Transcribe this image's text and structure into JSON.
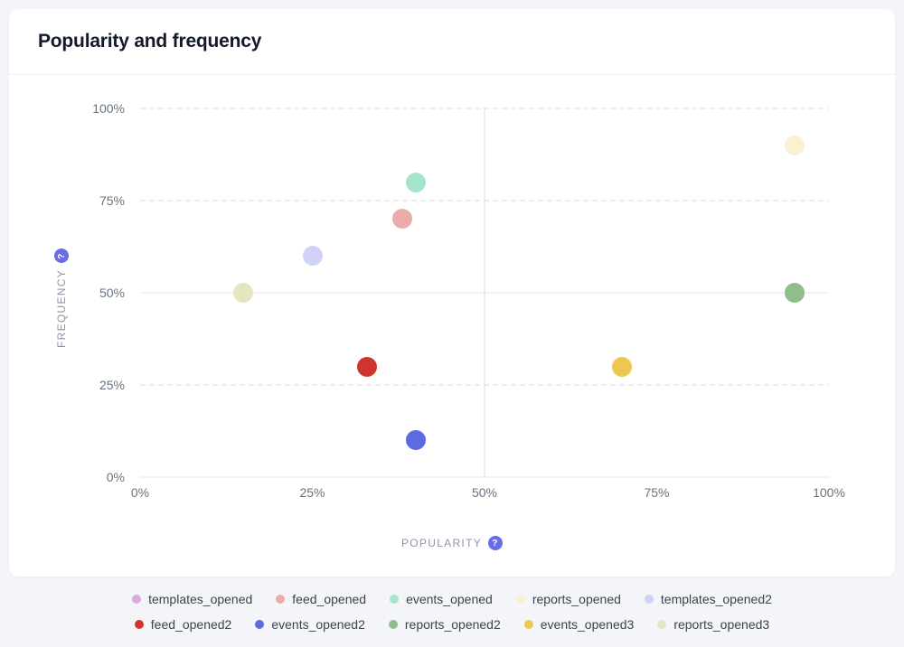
{
  "card": {
    "title": "Popularity and frequency"
  },
  "help_badge": "?",
  "chart_data": {
    "type": "scatter",
    "title": "Popularity and frequency",
    "xlabel": "POPULARITY",
    "ylabel": "FREQUENCY",
    "xlim": [
      0,
      100
    ],
    "ylim": [
      0,
      100
    ],
    "x_ticks": [
      "0%",
      "25%",
      "50%",
      "75%",
      "100%"
    ],
    "y_ticks": [
      "0%",
      "25%",
      "50%",
      "75%",
      "100%"
    ],
    "grid": {
      "horizontal_dashed_at": [
        25,
        75,
        100
      ],
      "horizontal_solid_at": [
        0,
        50
      ],
      "vertical_solid_at": [
        50
      ]
    },
    "units": "percent",
    "series": [
      {
        "name": "templates_opened",
        "color": "#DBA9E2",
        "points": []
      },
      {
        "name": "feed_opened",
        "color": "#ECABAB",
        "points": [
          [
            38,
            70
          ]
        ]
      },
      {
        "name": "events_opened",
        "color": "#A4E5C9",
        "points": [
          [
            40,
            80
          ]
        ]
      },
      {
        "name": "reports_opened",
        "color": "#FAF0D3",
        "points": [
          [
            95,
            90
          ]
        ]
      },
      {
        "name": "templates_opened2",
        "color": "#D0D3F6",
        "points": [
          [
            25,
            60
          ]
        ]
      },
      {
        "name": "feed_opened2",
        "color": "#CF352D",
        "points": [
          [
            33,
            30
          ]
        ]
      },
      {
        "name": "events_opened2",
        "color": "#5D6AE1",
        "points": [
          [
            40,
            10
          ]
        ]
      },
      {
        "name": "reports_opened2",
        "color": "#90BD8B",
        "points": [
          [
            95,
            50
          ]
        ]
      },
      {
        "name": "events_opened3",
        "color": "#EEC752",
        "points": [
          [
            70,
            30
          ]
        ]
      },
      {
        "name": "reports_opened3",
        "color": "#E5E5C0",
        "points": [
          [
            15,
            50
          ]
        ]
      }
    ]
  },
  "legend": {
    "position": "bottom",
    "items_per_row": 5
  }
}
